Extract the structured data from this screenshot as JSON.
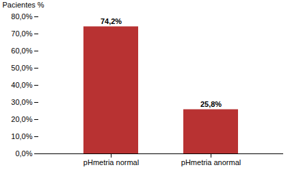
{
  "chart_data": {
    "type": "bar",
    "categories": [
      "pHmetria normal",
      "pHmetria anormal"
    ],
    "values": [
      74.2,
      25.8
    ],
    "value_labels": [
      "74,2%",
      "25,8%"
    ],
    "data_labels": true,
    "color": "#b83232",
    "ylabel": "Pacientes %",
    "ylim": [
      0,
      80
    ],
    "yticks": [
      {
        "value": 0,
        "label": "0,0%"
      },
      {
        "value": 10,
        "label": "10,0%"
      },
      {
        "value": 20,
        "label": "20,0%"
      },
      {
        "value": 30,
        "label": "30,0%"
      },
      {
        "value": 40,
        "label": "40,0%"
      },
      {
        "value": 50,
        "label": "50,0%"
      },
      {
        "value": 60,
        "label": "60,0%"
      },
      {
        "value": 70,
        "label": "70,0%"
      },
      {
        "value": 80,
        "label": "80,0%"
      }
    ],
    "grid": false
  }
}
